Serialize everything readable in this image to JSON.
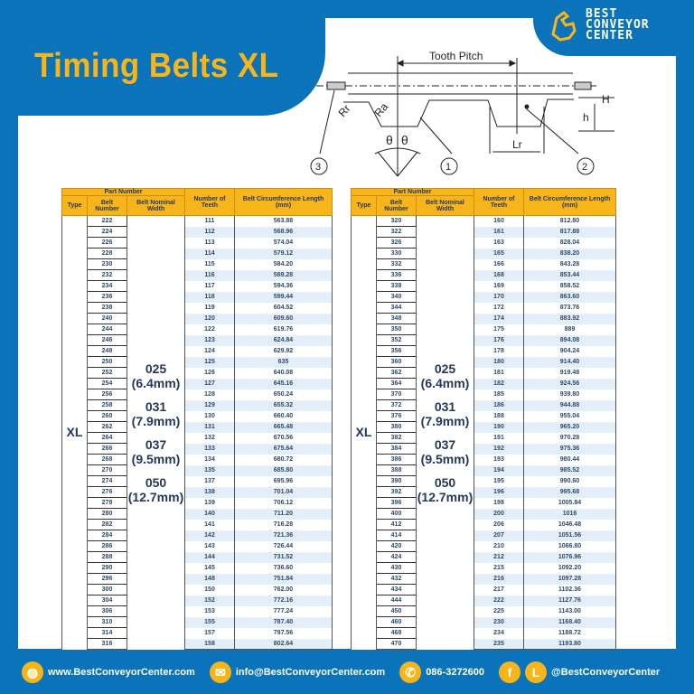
{
  "title": "Timing Belts XL",
  "logo": {
    "line1": "BEST",
    "line2": "CONVEYOR",
    "line3": "CENTER"
  },
  "diagram": {
    "tooth_pitch": "Tooth  Pitch",
    "rr": "Rr",
    "ra": "Ra",
    "theta": "θ",
    "lr": "Lr",
    "h_small": "h",
    "h_big": "H",
    "callouts": [
      "1",
      "2",
      "3"
    ]
  },
  "table_headers": {
    "part_number": "Part Number",
    "type": "Type",
    "belt_number": "Belt Number",
    "nominal_width": "Belt Nominal Width",
    "teeth": "Number of Teeth",
    "length": "Belt Circumference Length (mm)"
  },
  "type": "XL",
  "widths": [
    [
      "025",
      "(6.4mm)"
    ],
    [
      "031",
      "(7.9mm)"
    ],
    [
      "037",
      "(9.5mm)"
    ],
    [
      "050",
      "(12.7mm)"
    ]
  ],
  "tables": [
    {
      "rows": [
        [
          "222",
          "111",
          "563.88"
        ],
        [
          "224",
          "112",
          "568.96"
        ],
        [
          "226",
          "113",
          "574.04"
        ],
        [
          "228",
          "114",
          "579.12"
        ],
        [
          "230",
          "115",
          "584.20"
        ],
        [
          "232",
          "116",
          "589.28"
        ],
        [
          "234",
          "117",
          "594.36"
        ],
        [
          "236",
          "118",
          "599.44"
        ],
        [
          "238",
          "119",
          "604.52"
        ],
        [
          "240",
          "120",
          "609.60"
        ],
        [
          "244",
          "122",
          "619.76"
        ],
        [
          "246",
          "123",
          "624.84"
        ],
        [
          "248",
          "124",
          "629.92"
        ],
        [
          "250",
          "125",
          "635"
        ],
        [
          "252",
          "126",
          "640.08"
        ],
        [
          "254",
          "127",
          "645.16"
        ],
        [
          "256",
          "128",
          "650.24"
        ],
        [
          "258",
          "129",
          "655.32"
        ],
        [
          "260",
          "130",
          "660.40"
        ],
        [
          "262",
          "131",
          "665.48"
        ],
        [
          "264",
          "132",
          "670.56"
        ],
        [
          "266",
          "133",
          "675.64"
        ],
        [
          "268",
          "134",
          "680.72"
        ],
        [
          "270",
          "135",
          "685.80"
        ],
        [
          "274",
          "137",
          "695.96"
        ],
        [
          "276",
          "138",
          "701.04"
        ],
        [
          "278",
          "139",
          "706.12"
        ],
        [
          "280",
          "140",
          "711.20"
        ],
        [
          "282",
          "141",
          "716.28"
        ],
        [
          "284",
          "142",
          "721.36"
        ],
        [
          "286",
          "143",
          "726.44"
        ],
        [
          "288",
          "144",
          "731.52"
        ],
        [
          "290",
          "145",
          "736.60"
        ],
        [
          "296",
          "148",
          "751.84"
        ],
        [
          "300",
          "150",
          "762.00"
        ],
        [
          "304",
          "152",
          "772.16"
        ],
        [
          "306",
          "153",
          "777.24"
        ],
        [
          "310",
          "155",
          "787.40"
        ],
        [
          "314",
          "157",
          "797.56"
        ],
        [
          "316",
          "158",
          "802.64"
        ]
      ]
    },
    {
      "rows": [
        [
          "320",
          "160",
          "812.80"
        ],
        [
          "322",
          "161",
          "817.88"
        ],
        [
          "326",
          "163",
          "828.04"
        ],
        [
          "330",
          "165",
          "838.20"
        ],
        [
          "332",
          "166",
          "843.28"
        ],
        [
          "336",
          "168",
          "853.44"
        ],
        [
          "338",
          "169",
          "858.52"
        ],
        [
          "340",
          "170",
          "863.60"
        ],
        [
          "344",
          "172",
          "873.76"
        ],
        [
          "348",
          "174",
          "883.92"
        ],
        [
          "350",
          "175",
          "889"
        ],
        [
          "352",
          "176",
          "894.08"
        ],
        [
          "356",
          "178",
          "904.24"
        ],
        [
          "360",
          "180",
          "914.40"
        ],
        [
          "362",
          "181",
          "919.48"
        ],
        [
          "364",
          "182",
          "924.56"
        ],
        [
          "370",
          "185",
          "939.80"
        ],
        [
          "372",
          "186",
          "944.88"
        ],
        [
          "376",
          "188",
          "955.04"
        ],
        [
          "380",
          "190",
          "965.20"
        ],
        [
          "382",
          "191",
          "970.28"
        ],
        [
          "384",
          "192",
          "975.36"
        ],
        [
          "386",
          "193",
          "980.44"
        ],
        [
          "388",
          "194",
          "985.52"
        ],
        [
          "390",
          "195",
          "990.60"
        ],
        [
          "392",
          "196",
          "995.68"
        ],
        [
          "396",
          "198",
          "1005.84"
        ],
        [
          "400",
          "200",
          "1016"
        ],
        [
          "412",
          "206",
          "1046.48"
        ],
        [
          "414",
          "207",
          "1051.56"
        ],
        [
          "420",
          "210",
          "1066.80"
        ],
        [
          "424",
          "212",
          "1076.96"
        ],
        [
          "430",
          "215",
          "1092.20"
        ],
        [
          "432",
          "216",
          "1097.28"
        ],
        [
          "434",
          "217",
          "1102.36"
        ],
        [
          "444",
          "222",
          "1127.76"
        ],
        [
          "450",
          "225",
          "1143.00"
        ],
        [
          "460",
          "230",
          "1168.40"
        ],
        [
          "468",
          "234",
          "1188.72"
        ],
        [
          "470",
          "235",
          "1193.80"
        ]
      ]
    }
  ],
  "footer": {
    "website": "www.BestConveyorCenter.com",
    "email": "info@BestConveyorCenter.com",
    "phone": "086-3272600",
    "social": "@BestConveyorCenter",
    "line_letter": "L",
    "fb_letter": "f"
  },
  "colors": {
    "brand_blue": "#0b73ba",
    "accent_yellow": "#f7b51a",
    "row_alt": "#e4eef8"
  }
}
